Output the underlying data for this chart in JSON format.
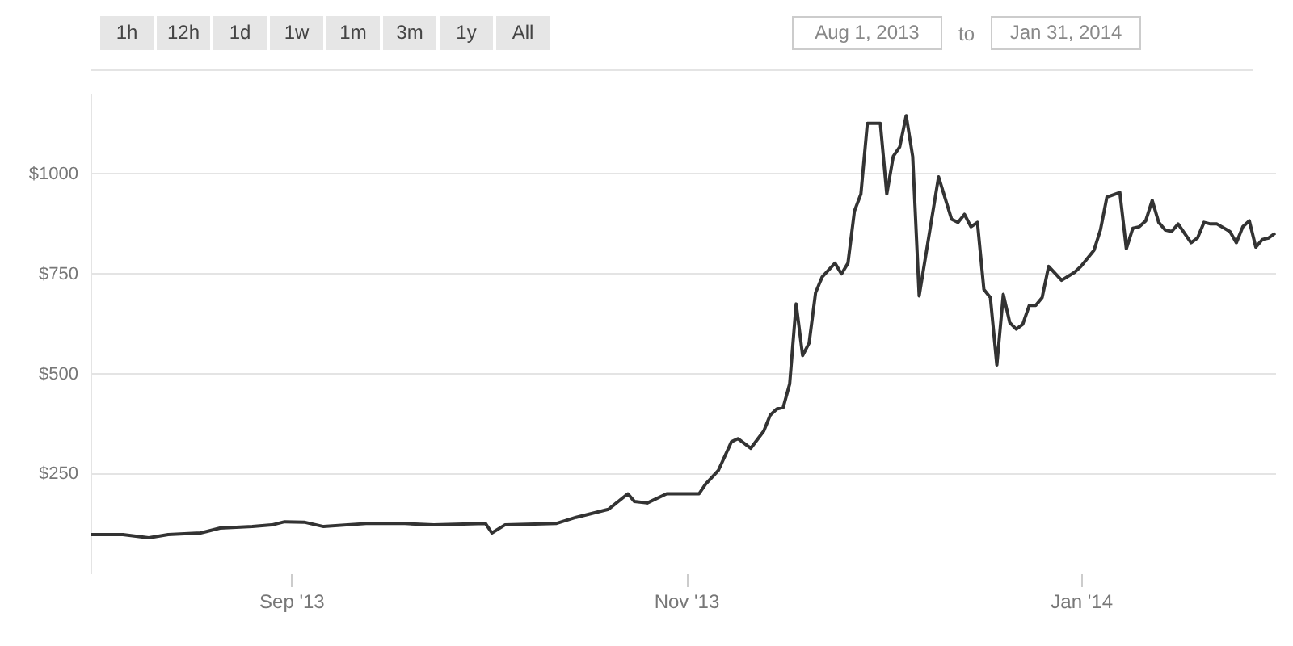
{
  "chart_data": {
    "type": "line",
    "annotations": [
      "1h",
      "12h",
      "1d",
      "1w",
      "1m",
      "3m",
      "1y",
      "All",
      "Aug 1, 2013",
      "to",
      "Jan 31, 2014"
    ],
    "x": [
      "2013-08-01",
      "2013-08-06",
      "2013-08-10",
      "2013-08-13",
      "2013-08-18",
      "2013-08-21",
      "2013-08-26",
      "2013-08-29",
      "2013-08-31",
      "2013-09-03",
      "2013-09-06",
      "2013-09-13",
      "2013-09-18",
      "2013-09-23",
      "2013-10-01",
      "2013-10-02",
      "2013-10-04",
      "2013-10-12",
      "2013-10-15",
      "2013-10-20",
      "2013-10-23",
      "2013-10-24",
      "2013-10-26",
      "2013-10-29",
      "2013-11-03",
      "2013-11-04",
      "2013-11-06",
      "2013-11-08",
      "2013-11-09",
      "2013-11-11",
      "2013-11-13",
      "2013-11-14",
      "2013-11-15",
      "2013-11-16",
      "2013-11-17",
      "2013-11-18",
      "2013-11-19",
      "2013-11-20",
      "2013-11-21",
      "2013-11-22",
      "2013-11-24",
      "2013-11-25",
      "2013-11-26",
      "2013-11-27",
      "2013-11-28",
      "2013-11-29",
      "2013-12-01",
      "2013-12-02",
      "2013-12-03",
      "2013-12-04",
      "2013-12-05",
      "2013-12-06",
      "2013-12-07",
      "2013-12-10",
      "2013-12-12",
      "2013-12-13",
      "2013-12-14",
      "2013-12-15",
      "2013-12-16",
      "2013-12-17",
      "2013-12-18",
      "2013-12-19",
      "2013-12-20",
      "2013-12-21",
      "2013-12-22",
      "2013-12-23",
      "2013-12-24",
      "2013-12-25",
      "2013-12-26",
      "2013-12-27",
      "2013-12-29",
      "2013-12-31",
      "2014-01-01",
      "2014-01-03",
      "2014-01-04",
      "2014-01-05",
      "2014-01-07",
      "2014-01-08",
      "2014-01-09",
      "2014-01-10",
      "2014-01-11",
      "2014-01-12",
      "2014-01-13",
      "2014-01-14",
      "2014-01-15",
      "2014-01-16",
      "2014-01-18",
      "2014-01-19",
      "2014-01-20",
      "2014-01-21",
      "2014-01-22",
      "2014-01-24",
      "2014-01-25",
      "2014-01-26",
      "2014-01-27",
      "2014-01-28",
      "2014-01-29",
      "2014-01-30",
      "2014-01-31"
    ],
    "series": [
      {
        "color": "#333333",
        "values": [
          97,
          97,
          89,
          97,
          101,
          113,
          117,
          121,
          129,
          128,
          117,
          125,
          125,
          121,
          125,
          101,
          121,
          125,
          140,
          160,
          199,
          180,
          176,
          199,
          199,
          223,
          258,
          329,
          337,
          313,
          356,
          396,
          411,
          415,
          474,
          674,
          545,
          576,
          702,
          741,
          776,
          749,
          776,
          906,
          949,
          1126,
          1126,
          949,
          1043,
          1067,
          1145,
          1043,
          694,
          992,
          886,
          878,
          898,
          867,
          878,
          710,
          690,
          521,
          698,
          627,
          611,
          623,
          670,
          670,
          690,
          768,
          733,
          753,
          768,
          808,
          859,
          941,
          953,
          812,
          863,
          867,
          882,
          933,
          878,
          859,
          855,
          874,
          827,
          839,
          878,
          874,
          874,
          855,
          827,
          867,
          882,
          816,
          835,
          839,
          851
        ]
      }
    ],
    "xlim": [
      "2013-08-01",
      "2014-01-31"
    ],
    "xticks": [
      {
        "value": "2013-09-01",
        "label": "Sep '13"
      },
      {
        "value": "2013-11-01",
        "label": "Nov '13"
      },
      {
        "value": "2014-01-01",
        "label": "Jan '14"
      }
    ],
    "ylim": [
      0,
      1200
    ],
    "yticks": [
      {
        "value": 250,
        "label": "$250"
      },
      {
        "value": 500,
        "label": "$500"
      },
      {
        "value": 750,
        "label": "$750"
      },
      {
        "value": 1000,
        "label": "$1000"
      }
    ],
    "grid": "y",
    "marker": "none",
    "line_style": "solid"
  }
}
